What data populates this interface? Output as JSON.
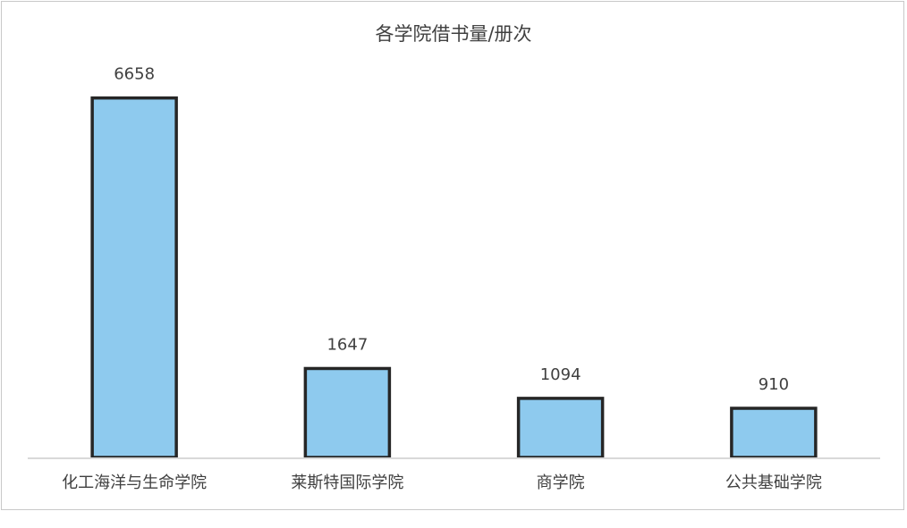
{
  "chart_data": {
    "type": "bar",
    "title": "各学院借书量/册次",
    "categories": [
      "化工海洋与生命学院",
      "莱斯特国际学院",
      "商学院",
      "公共基础学院"
    ],
    "values": [
      6658,
      1647,
      1094,
      910
    ],
    "ylim": [
      0,
      7000
    ],
    "grid": false,
    "data_labels": true,
    "colors": {
      "bar_fill": "#8ECAEE",
      "bar_stroke": "#262626",
      "axis": "#d9d9d9",
      "text": "#404040"
    }
  }
}
